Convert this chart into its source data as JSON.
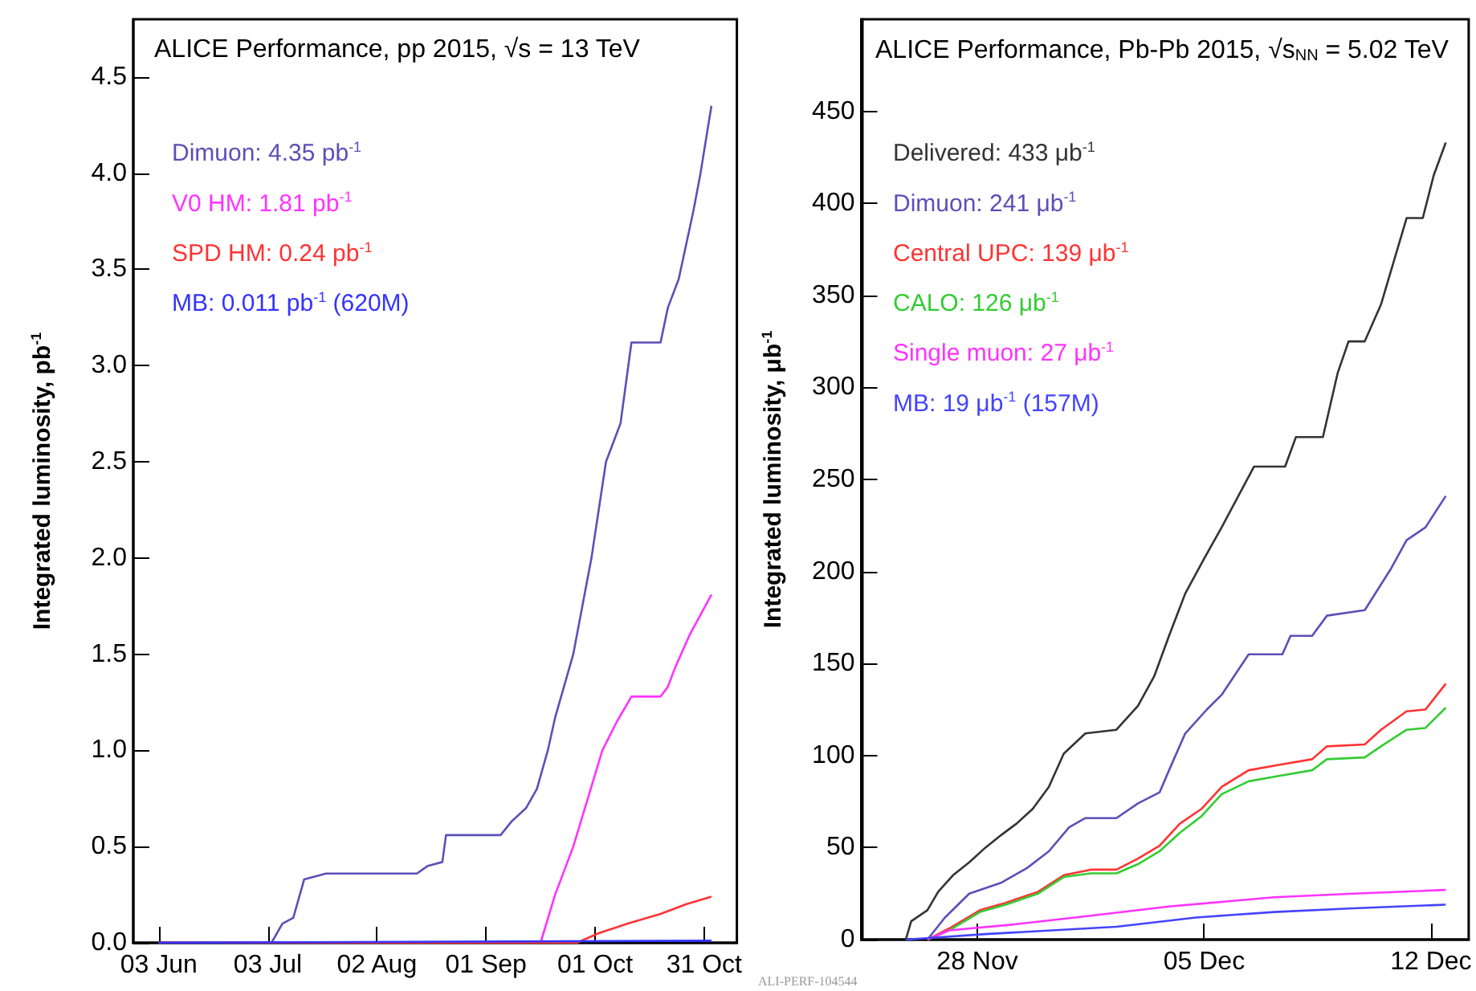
{
  "chart_data": [
    {
      "type": "line",
      "title": "ALICE Performance, pp 2015, √s = 13 TeV",
      "ylabel": "Integrated luminosity, pb$^{-1}$",
      "legend": "top left",
      "marker": "none",
      "xlim": [
        "2015-05-27",
        "2015-11-09"
      ],
      "xticks": [
        {
          "value": "2015-06-03",
          "label": "03 Jun"
        },
        {
          "value": "2015-07-03",
          "label": "03 Jul"
        },
        {
          "value": "2015-08-02",
          "label": "02 Aug"
        },
        {
          "value": "2015-09-01",
          "label": "01 Sep"
        },
        {
          "value": "2015-10-01",
          "label": "01 Oct"
        },
        {
          "value": "2015-10-31",
          "label": "31 Oct"
        }
      ],
      "ylim": [
        0,
        4.8
      ],
      "yticks": [
        {
          "value": 0,
          "label": "0.0"
        },
        {
          "value": 0.5,
          "label": "0.5"
        },
        {
          "value": 1,
          "label": "1.0"
        },
        {
          "value": 1.5,
          "label": "1.5"
        },
        {
          "value": 2,
          "label": "2.0"
        },
        {
          "value": 2.5,
          "label": "2.5"
        },
        {
          "value": 3,
          "label": "3.0"
        },
        {
          "value": 3.5,
          "label": "3.5"
        },
        {
          "value": 4,
          "label": "4.0"
        },
        {
          "value": 4.5,
          "label": "4.5"
        }
      ],
      "series": [
        {
          "name": "Dimuon: 4.35 pb$^{-1}$",
          "color": "#5b50b8",
          "x": [
            "2015-06-03",
            "2015-07-04",
            "2015-07-07",
            "2015-07-10",
            "2015-07-13",
            "2015-07-19",
            "2015-08-13",
            "2015-08-16",
            "2015-08-20",
            "2015-08-21",
            "2015-09-05",
            "2015-09-08",
            "2015-09-12",
            "2015-09-15",
            "2015-09-18",
            "2015-09-20",
            "2015-09-25",
            "2015-09-30",
            "2015-10-04",
            "2015-10-08",
            "2015-10-11",
            "2015-10-19",
            "2015-10-21",
            "2015-10-24",
            "2015-10-28",
            "2015-10-30",
            "2015-11-02"
          ],
          "values": [
            0,
            0,
            0.1,
            0.13,
            0.33,
            0.36,
            0.36,
            0.4,
            0.42,
            0.56,
            0.56,
            0.63,
            0.7,
            0.8,
            1.0,
            1.17,
            1.5,
            2.0,
            2.5,
            2.7,
            3.12,
            3.12,
            3.3,
            3.45,
            3.8,
            4.0,
            4.35
          ]
        },
        {
          "name": "V0 HM: 1.81 pb$^{-1}$",
          "color": "#ff33ff",
          "x": [
            "2015-06-03",
            "2015-09-16",
            "2015-09-20",
            "2015-09-25",
            "2015-09-29",
            "2015-10-03",
            "2015-10-07",
            "2015-10-11",
            "2015-10-19",
            "2015-10-21",
            "2015-10-23",
            "2015-10-27",
            "2015-11-02"
          ],
          "values": [
            0,
            0,
            0.25,
            0.5,
            0.75,
            1.0,
            1.15,
            1.28,
            1.28,
            1.33,
            1.43,
            1.6,
            1.81
          ]
        },
        {
          "name": "SPD HM: 0.24 pb$^{-1}$",
          "color": "#ff3333",
          "x": [
            "2015-06-03",
            "2015-09-26",
            "2015-10-02",
            "2015-10-10",
            "2015-10-19",
            "2015-10-26",
            "2015-11-02"
          ],
          "values": [
            0,
            0,
            0.05,
            0.1,
            0.15,
            0.2,
            0.24
          ]
        },
        {
          "name": "MB: 0.011 pb$^{-1}$ (620M)",
          "color": "#3333ff",
          "x": [
            "2015-06-03",
            "2015-11-02"
          ],
          "values": [
            0,
            0.011
          ]
        }
      ]
    },
    {
      "type": "line",
      "title": "ALICE Performance, Pb-Pb 2015, √s$_{NN}$ = 5.02 TeV",
      "ylabel": "Integrated luminosity, μb$^{-1}$",
      "legend": "top left",
      "marker": "none",
      "xlim": [
        "2015-11-24T10:00",
        "2015-12-13T04:00"
      ],
      "xticks": [
        {
          "value": "2015-11-28",
          "label": "28 Nov"
        },
        {
          "value": "2015-12-05",
          "label": "05 Dec"
        },
        {
          "value": "2015-12-12",
          "label": "12 Dec"
        }
      ],
      "ylim": [
        0,
        500
      ],
      "yticks": [
        0,
        50,
        100,
        150,
        200,
        250,
        300,
        350,
        400,
        450
      ],
      "annotations": [
        "ALI-PERF-104544"
      ],
      "series": [
        {
          "name": "Delivered: 433 μb$^{-1}$",
          "color": "#333333",
          "x": [
            "2015-11-25T19:00",
            "2015-11-25T23:00",
            "2015-11-26T11:00",
            "2015-11-26T19:00",
            "2015-11-27T06:00",
            "2015-11-27T18:00",
            "2015-11-28T06:00",
            "2015-11-28T18:00",
            "2015-11-29T05:00",
            "2015-11-29T17:00",
            "2015-11-30T05:00",
            "2015-11-30T16:00",
            "2015-12-01T08:00",
            "2015-12-02T07:00",
            "2015-12-02T23:00",
            "2015-12-03T11:00",
            "2015-12-03T22:00",
            "2015-12-04T10:00",
            "2015-12-05T00:00",
            "2015-12-05T13:00",
            "2015-12-06T05:00",
            "2015-12-06T13:00",
            "2015-12-07T12:00",
            "2015-12-07T20:00",
            "2015-12-08T16:00",
            "2015-12-09T03:00",
            "2015-12-09T11:00",
            "2015-12-09T23:00",
            "2015-12-10T11:00",
            "2015-12-11T06:00",
            "2015-12-11T18:00",
            "2015-12-12T02:00",
            "2015-12-12T11:00"
          ],
          "values": [
            0,
            10,
            16,
            26,
            35,
            42,
            50,
            57,
            63,
            71,
            83,
            101,
            112,
            114,
            127,
            143,
            165,
            188,
            207,
            224,
            246,
            257,
            257,
            273,
            273,
            308,
            325,
            325,
            345,
            392,
            392,
            415,
            433
          ]
        },
        {
          "name": "Dimuon: 241 μb$^{-1}$",
          "color": "#5b50b8",
          "x": [
            "2015-11-26T11:00",
            "2015-11-27T00:00",
            "2015-11-27T18:00",
            "2015-11-28T18:00",
            "2015-11-29T13:00",
            "2015-11-30T05:00",
            "2015-11-30T20:00",
            "2015-12-01T08:00",
            "2015-12-02T07:00",
            "2015-12-02T23:00",
            "2015-12-03T15:00",
            "2015-12-03T22:00",
            "2015-12-04T10:00",
            "2015-12-05T02:00",
            "2015-12-05T13:00",
            "2015-12-06T09:00",
            "2015-12-07T10:00",
            "2015-12-07T16:00",
            "2015-12-08T08:00",
            "2015-12-08T19:00",
            "2015-12-09T23:00",
            "2015-12-10T18:00",
            "2015-12-11T06:00",
            "2015-12-11T20:00",
            "2015-12-12T11:00"
          ],
          "values": [
            0,
            12,
            25,
            31,
            39,
            48,
            61,
            66,
            66,
            74,
            80,
            92,
            112,
            125,
            133,
            155,
            155,
            165,
            165,
            176,
            179,
            201,
            217,
            224,
            241
          ]
        },
        {
          "name": "Central UPC: 139 μb$^{-1}$",
          "color": "#ff3333",
          "x": [
            "2015-11-26T11:00",
            "2015-11-27T03:00",
            "2015-11-28T02:00",
            "2015-11-28T21:00",
            "2015-11-29T21:00",
            "2015-11-30T16:00",
            "2015-12-01T12:00",
            "2015-12-02T07:00",
            "2015-12-02T23:00",
            "2015-12-03T15:00",
            "2015-12-04T06:00",
            "2015-12-04T22:00",
            "2015-12-05T13:00",
            "2015-12-06T09:00",
            "2015-12-07T08:00",
            "2015-12-08T08:00",
            "2015-12-08T19:00",
            "2015-12-09T23:00",
            "2015-12-10T11:00",
            "2015-12-11T06:00",
            "2015-12-11T20:00",
            "2015-12-12T11:00"
          ],
          "values": [
            0,
            6,
            16,
            20,
            26,
            35,
            38,
            38,
            44,
            51,
            63,
            71,
            83,
            92,
            95,
            98,
            105,
            106,
            114,
            124,
            125,
            139
          ]
        },
        {
          "name": "CALO: 126 μb$^{-1}$",
          "color": "#33cc33",
          "x": [
            "2015-11-26T11:00",
            "2015-11-27T03:00",
            "2015-11-28T02:00",
            "2015-11-28T21:00",
            "2015-11-29T21:00",
            "2015-11-30T16:00",
            "2015-12-01T12:00",
            "2015-12-02T07:00",
            "2015-12-02T23:00",
            "2015-12-03T15:00",
            "2015-12-04T06:00",
            "2015-12-04T22:00",
            "2015-12-05T13:00",
            "2015-12-06T09:00",
            "2015-12-07T08:00",
            "2015-12-08T08:00",
            "2015-12-08T19:00",
            "2015-12-09T23:00",
            "2015-12-10T11:00",
            "2015-12-11T06:00",
            "2015-12-11T20:00",
            "2015-12-12T11:00"
          ],
          "values": [
            0,
            5,
            15,
            19,
            25,
            34,
            36,
            36,
            41,
            48,
            58,
            67,
            79,
            86,
            89,
            92,
            98,
            99,
            105,
            114,
            115,
            126
          ]
        },
        {
          "name": "Single muon: 27 μb$^{-1}$",
          "color": "#ff33ff",
          "x": [
            "2015-11-26T11:00",
            "2015-11-27T03:00",
            "2015-11-29T00:00",
            "2015-12-01T12:00",
            "2015-12-03T22:00",
            "2015-12-07T04:00",
            "2015-12-09T15:00",
            "2015-12-12T11:00"
          ],
          "values": [
            0,
            5,
            8,
            13,
            18,
            23,
            25,
            27
          ]
        },
        {
          "name": "MB: 19 μb$^{-1}$ (157M)",
          "color": "#4444ff",
          "x": [
            "2015-11-25T19:00",
            "2015-11-28T06:00",
            "2015-12-02T07:00",
            "2015-12-04T18:00",
            "2015-12-07T04:00",
            "2015-12-09T15:00",
            "2015-12-12T11:00"
          ],
          "values": [
            0,
            3,
            7,
            12,
            15,
            17,
            19
          ]
        }
      ]
    }
  ]
}
